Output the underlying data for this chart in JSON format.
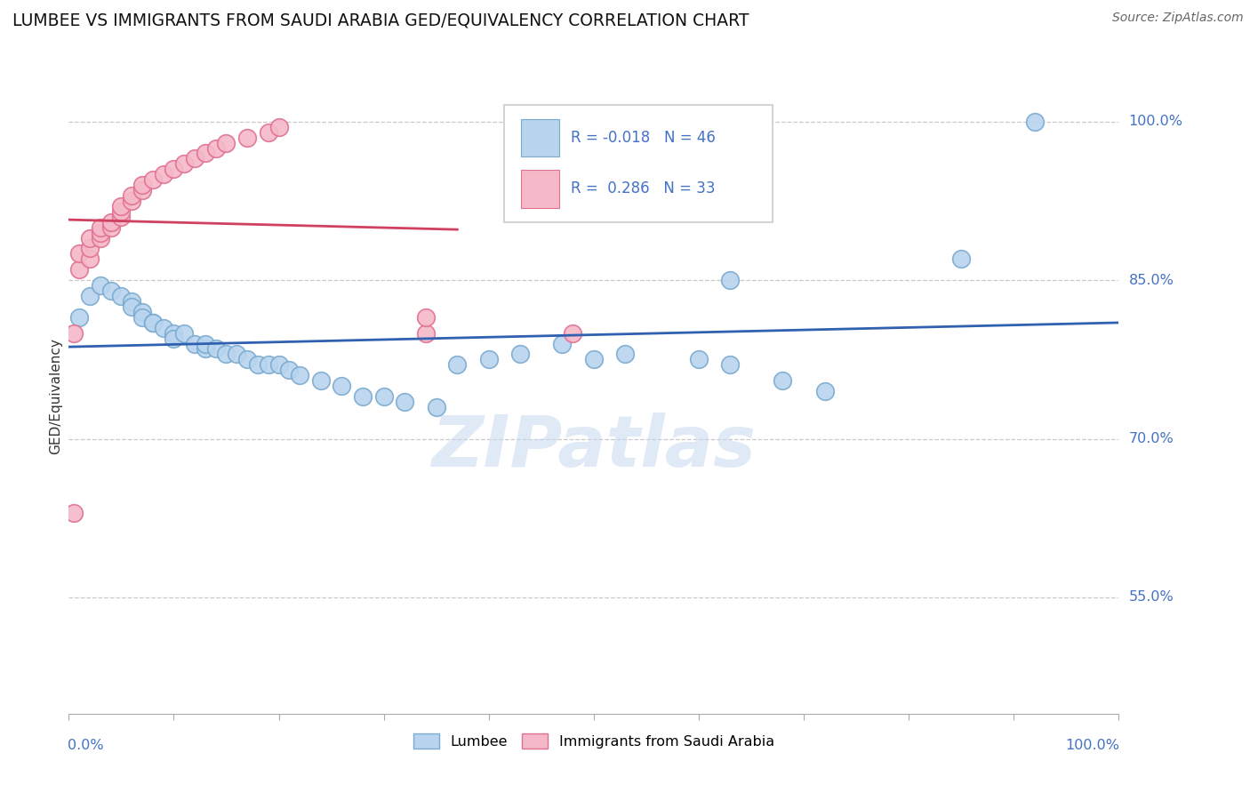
{
  "title": "LUMBEE VS IMMIGRANTS FROM SAUDI ARABIA GED/EQUIVALENCY CORRELATION CHART",
  "source": "Source: ZipAtlas.com",
  "ylabel": "GED/Equivalency",
  "ylim": [
    0.44,
    1.04
  ],
  "xlim": [
    0.0,
    1.0
  ],
  "yticks": [
    0.55,
    0.7,
    0.85,
    1.0
  ],
  "ytick_labels": [
    "55.0%",
    "70.0%",
    "85.0%",
    "100.0%"
  ],
  "lumbee_R": -0.018,
  "lumbee_N": 46,
  "saudi_R": 0.286,
  "saudi_N": 33,
  "lumbee_dot_face": "#b8d4ee",
  "lumbee_dot_edge": "#7aaad0",
  "saudi_dot_face": "#f5b8c8",
  "saudi_dot_edge": "#e07090",
  "trend_lumbee_color": "#3060b0",
  "trend_saudi_color": "#d04060",
  "legend_box_lumbee_face": "#b8d4ee",
  "legend_box_lumbee_edge": "#7aaad0",
  "legend_box_saudi_face": "#f5b8c8",
  "legend_box_saudi_edge": "#e07090",
  "lumbee_x": [
    0.01,
    0.02,
    0.03,
    0.04,
    0.05,
    0.06,
    0.06,
    0.07,
    0.07,
    0.08,
    0.08,
    0.09,
    0.1,
    0.1,
    0.11,
    0.12,
    0.13,
    0.13,
    0.14,
    0.15,
    0.16,
    0.17,
    0.18,
    0.19,
    0.2,
    0.21,
    0.22,
    0.24,
    0.26,
    0.28,
    0.3,
    0.32,
    0.35,
    0.37,
    0.4,
    0.43,
    0.47,
    0.5,
    0.53,
    0.6,
    0.63,
    0.68,
    0.85,
    0.92,
    0.63,
    0.72
  ],
  "lumbee_y": [
    0.815,
    0.835,
    0.845,
    0.84,
    0.835,
    0.83,
    0.825,
    0.82,
    0.815,
    0.81,
    0.81,
    0.805,
    0.8,
    0.795,
    0.8,
    0.79,
    0.785,
    0.79,
    0.785,
    0.78,
    0.78,
    0.775,
    0.77,
    0.77,
    0.77,
    0.765,
    0.76,
    0.755,
    0.75,
    0.74,
    0.74,
    0.735,
    0.73,
    0.77,
    0.775,
    0.78,
    0.79,
    0.775,
    0.78,
    0.775,
    0.77,
    0.755,
    0.87,
    1.0,
    0.85,
    0.745
  ],
  "saudi_x": [
    0.005,
    0.01,
    0.01,
    0.02,
    0.02,
    0.02,
    0.03,
    0.03,
    0.03,
    0.04,
    0.04,
    0.05,
    0.05,
    0.05,
    0.06,
    0.06,
    0.07,
    0.07,
    0.08,
    0.09,
    0.1,
    0.11,
    0.12,
    0.13,
    0.14,
    0.15,
    0.17,
    0.19,
    0.2,
    0.34,
    0.34,
    0.48,
    0.005
  ],
  "saudi_y": [
    0.8,
    0.86,
    0.875,
    0.87,
    0.88,
    0.89,
    0.89,
    0.895,
    0.9,
    0.9,
    0.905,
    0.91,
    0.915,
    0.92,
    0.925,
    0.93,
    0.935,
    0.94,
    0.945,
    0.95,
    0.955,
    0.96,
    0.965,
    0.97,
    0.975,
    0.98,
    0.985,
    0.99,
    0.995,
    0.8,
    0.815,
    0.8,
    0.63
  ],
  "watermark": "ZIPatlas",
  "background_color": "#ffffff",
  "grid_color": "#c8c8c8"
}
